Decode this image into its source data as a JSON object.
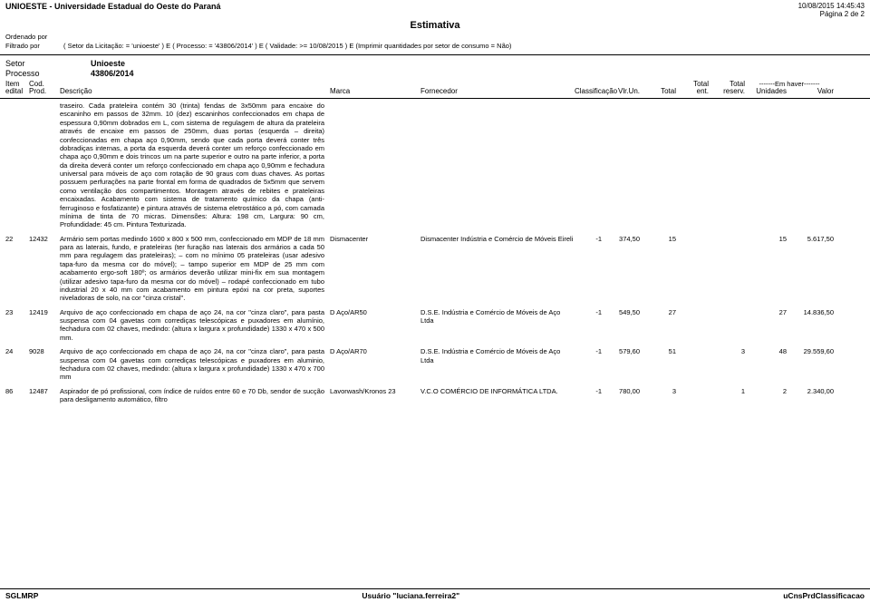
{
  "header": {
    "org": "UNIOESTE - Universidade Estadual do Oeste do Paraná",
    "timestamp": "10/08/2015 14:45:43",
    "page": "Página 2 de 2",
    "title": "Estimativa"
  },
  "filters": {
    "ord_label": "Ordenado por",
    "filt_label": "Filtrado por",
    "filt_text": "( Setor da Licitação: = 'unioeste' ) E ( Processo: = '43806/2014' ) E ( Validade: >= 10/08/2015 ) E (Imprimir quantidades por setor de consumo = Não)"
  },
  "section": {
    "setor_label": "Setor",
    "setor_value": "Unioeste",
    "proc_label": "Processo",
    "proc_value": "43806/2014"
  },
  "columns": {
    "item_l1": "Item",
    "item_l2": "edital",
    "cod_l1": "Cod.",
    "cod_l2": "Prod.",
    "desc": "Descrição",
    "marca": "Marca",
    "forn": "Fornecedor",
    "class": "Classificação",
    "vlr": "Vlr.Un.",
    "total": "Total",
    "tent_l1": "Total",
    "tent_l2": "ent.",
    "tres_l1": "Total",
    "tres_l2": "reserv.",
    "haver": "-------Em haver-------",
    "unid": "Unidades",
    "valor": "Valor"
  },
  "intro_desc": "traseiro. Cada prateleira contém 30 (trinta) fendas de 3x50mm para encaixe do escaninho em passos de 32mm. 10 (dez) escaninhos confeccionados em chapa de espessura 0,90mm dobrados em L, com sistema de regulagem de altura da prateleira através de encaixe em passos de 250mm, duas portas (esquerda – direita) confeccionadas em chapa aço 0,90mm, sendo que cada porta deverá conter três dobradiças internas, a porta da esquerda deverá conter um reforço confeccionado em chapa aço 0,90mm e dois trincos um na parte superior e outro na parte inferior, a porta da direita deverá conter um reforço confeccionado em chapa aço 0,90mm e fechadura universal para móveis de aço com rotação de 90 graus com duas chaves. As portas possuem perfurações na parte frontal em forma de quadrados de 5x5mm que servem como ventilação dos compartimentos. Montagem através de rebites e prateleiras encaixadas. Acabamento com sistema de tratamento químico da chapa (anti-ferruginoso e fosfatizante) e pintura através de sistema eletrostático a pó, com camada mínima de tinta de 70 micras. Dimensões: Altura: 198 cm, Largura: 90 cm, Profundidade: 45 cm. Pintura Texturizada.",
  "rows": [
    {
      "item": "22",
      "cod": "12432",
      "desc": "Armário sem portas medindo 1600 x 800 x 500 mm, confeccionado em MDP de 18 mm para as laterais, fundo, e prateleiras (ter furação nas laterais dos armários a cada 50 mm para regulagem das prateleiras); – com no mínimo 05 prateleiras (usar adesivo tapa-furo da mesma cor do móvel); – tampo superior em MDP de 25 mm com acabamento ergo-soft 180º; os armários deverão utilizar mini-fix em sua montagem (utilizar adesivo tapa-furo da mesma cor do móvel) – rodapé confeccionado em tubo industrial 20 x 40 mm com acabamento em pintura epóxi na cor preta, suportes niveladoras de solo, na cor \"cinza cristal\".",
      "marca": "Dismacenter",
      "forn": "Dismacenter Indústria e Comércio de Móveis Eireli",
      "class": "-1",
      "vlr": "374,50",
      "total": "15",
      "tent": "",
      "tres": "",
      "unid": "15",
      "valor": "5.617,50"
    },
    {
      "item": "23",
      "cod": "12419",
      "desc": "Arquivo de aço confeccionado em chapa de aço 24, na cor \"cinza claro\", para pasta suspensa com 04 gavetas com corrediças telescópicas e puxadores em alumínio, fechadura com 02 chaves, medindo: (altura x largura x profundidade) 1330 x 470 x 500 mm.",
      "marca": "D Aço/AR50",
      "forn": "D.S.E. Indústria e Comércio de Móveis de Aço Ltda",
      "class": "-1",
      "vlr": "549,50",
      "total": "27",
      "tent": "",
      "tres": "",
      "unid": "27",
      "valor": "14.836,50"
    },
    {
      "item": "24",
      "cod": "9028",
      "desc": "Arquivo de aço confeccionado em chapa de aço 24, na cor \"cinza claro\", para pasta suspensa com 04 gavetas com corrediças telescópicas e puxadores em aluminio, fechadura com 02 chaves, medindo: (altura x largura x profundidade) 1330 x 470 x 700 mm",
      "marca": "D Aço/AR70",
      "forn": "D.S.E. Indústria e Comércio de Móveis de Aço Ltda",
      "class": "-1",
      "vlr": "579,60",
      "total": "51",
      "tent": "",
      "tres": "3",
      "unid": "48",
      "valor": "29.559,60"
    },
    {
      "item": "86",
      "cod": "12487",
      "desc": "Aspirador de pó profissional, com índice de ruídos entre 60 e 70 Db, sendor de sucção para desligamento automático, filtro",
      "marca": "Lavorwash/Kronos 23",
      "forn": "V.C.O COMÉRCIO DE INFORMÁTICA LTDA.",
      "class": "-1",
      "vlr": "780,00",
      "total": "3",
      "tent": "",
      "tres": "1",
      "unid": "2",
      "valor": "2.340,00"
    }
  ],
  "footer": {
    "left": "SGLMRP",
    "center": "Usuário \"luciana.ferreira2\"",
    "right": "uCnsPrdClassificacao"
  }
}
